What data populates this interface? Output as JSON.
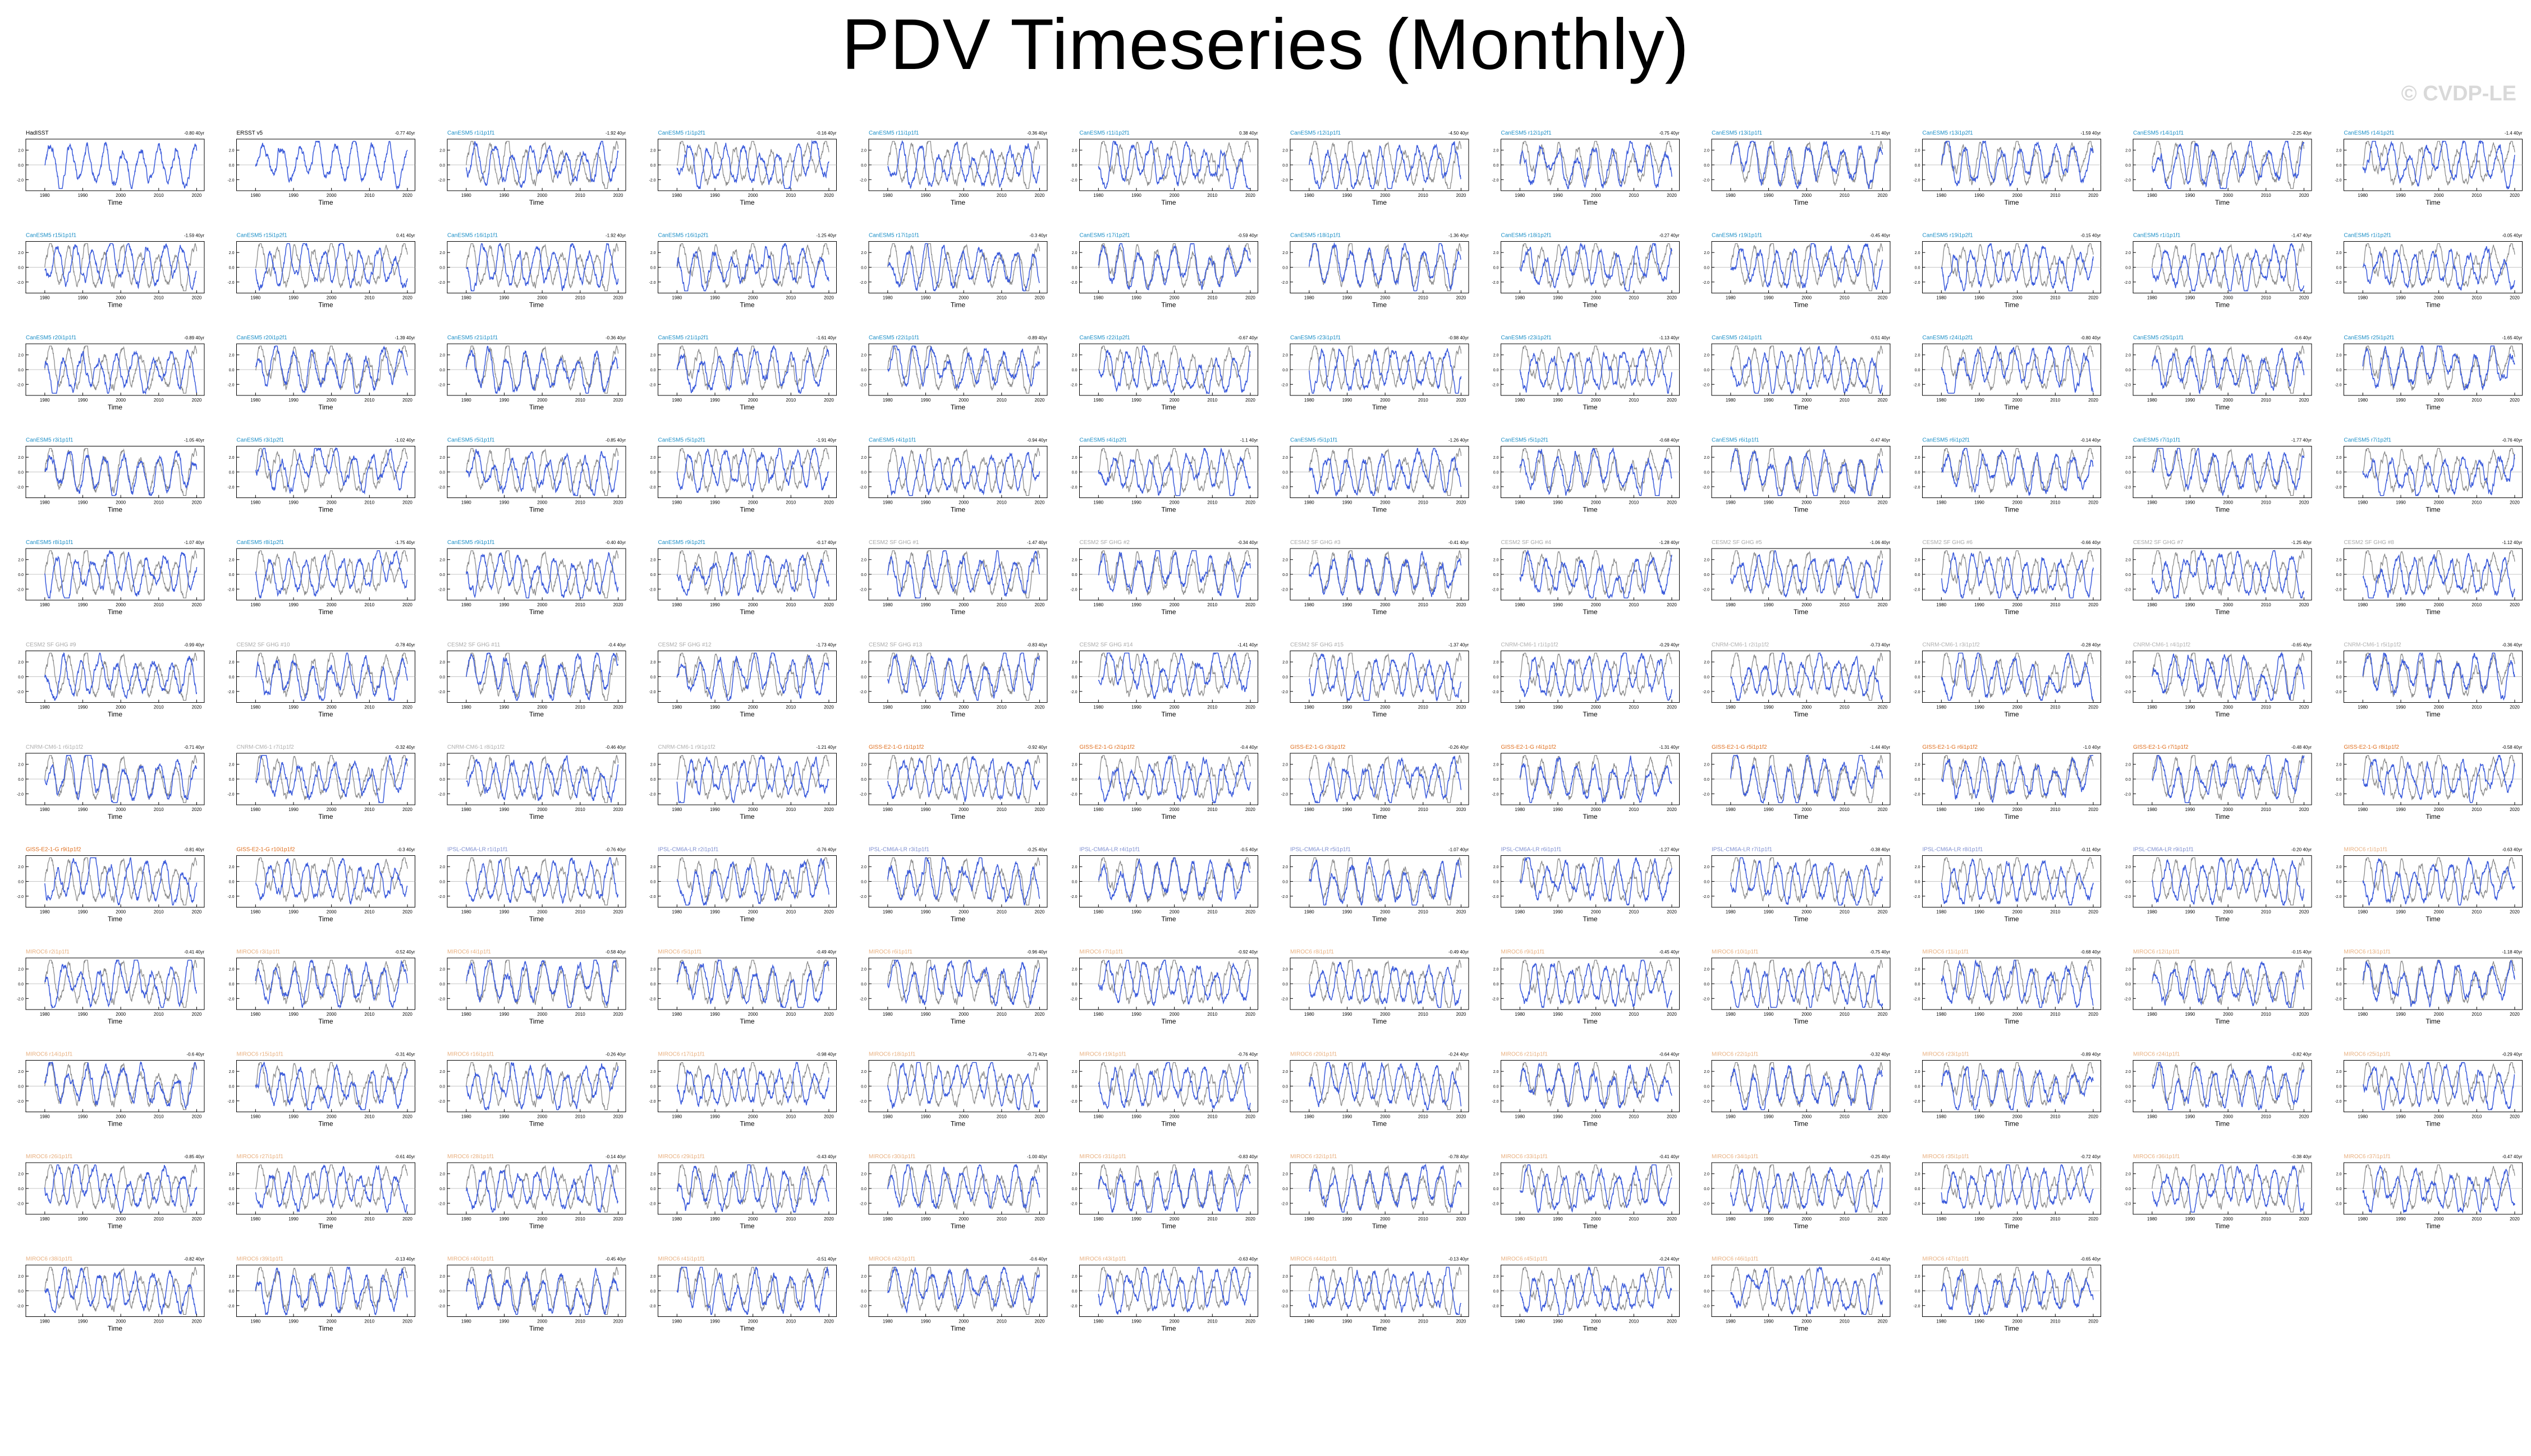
{
  "title": "PDV Timeseries (Monthly)",
  "copyright": "© CVDP-LE",
  "colors": {
    "model_line": "#3b5bdb",
    "obs_line": "#8c8c8c",
    "axis": "#000000",
    "title_obs": "#000000",
    "title_canesm5": "#1c8fc7",
    "title_cesm2": "#a9a9a9",
    "title_cnrm": "#b0b0b0",
    "title_giss": "#e07020",
    "title_ipsl": "#7f8fd0",
    "title_miroc": "#e8b080"
  },
  "chart_data": {
    "type": "line",
    "layout": "small-multiples",
    "xlabel": "Time",
    "x_ticks": [
      "1980",
      "1990",
      "2000",
      "2010",
      "2020"
    ],
    "xlim": [
      1975,
      2022
    ],
    "y_ticks": [
      -3.0,
      -2.0,
      -1.0,
      0.0,
      1.0,
      2.0,
      3.0
    ],
    "series_colors": {
      "member": "#3b5bdb",
      "observations_overlay": "#8c8c8c"
    },
    "panels": [
      {
        "title": "HadISST",
        "group": "obs",
        "trend": "-0.80 40yr"
      },
      {
        "title": "ERSST v5",
        "group": "obs",
        "trend": "-0.77 40yr"
      },
      {
        "title": "CanESM5 r1i1p1f1",
        "group": "canesm5",
        "trend": "-1.92 40yr"
      },
      {
        "title": "CanESM5 r1i1p2f1",
        "group": "canesm5",
        "trend": "-0.16 40yr"
      },
      {
        "title": "CanESM5 r11i1p1f1",
        "group": "canesm5",
        "trend": "-0.36 40yr"
      },
      {
        "title": "CanESM5 r11i1p2f1",
        "group": "canesm5",
        "trend": "0.38 40yr"
      },
      {
        "title": "CanESM5 r12i1p1f1",
        "group": "canesm5",
        "trend": "-4.50 40yr"
      },
      {
        "title": "CanESM5 r12i1p2f1",
        "group": "canesm5",
        "trend": "-0.75 40yr"
      },
      {
        "title": "CanESM5 r13i1p1f1",
        "group": "canesm5",
        "trend": "-1.71 40yr"
      },
      {
        "title": "CanESM5 r13i1p2f1",
        "group": "canesm5",
        "trend": "-1.59 40yr"
      },
      {
        "title": "CanESM5 r14i1p1f1",
        "group": "canesm5",
        "trend": "-2.25 40yr"
      },
      {
        "title": "CanESM5 r14i1p2f1",
        "group": "canesm5",
        "trend": "-1.4 40yr"
      },
      {
        "title": "CanESM5 r15i1p1f1",
        "group": "canesm5",
        "trend": "-1.59 40yr"
      },
      {
        "title": "CanESM5 r15i1p2f1",
        "group": "canesm5",
        "trend": "0.41 40yr"
      },
      {
        "title": "CanESM5 r16i1p1f1",
        "group": "canesm5",
        "trend": "-1.92 40yr"
      },
      {
        "title": "CanESM5 r16i1p2f1",
        "group": "canesm5",
        "trend": "-1.25 40yr"
      },
      {
        "title": "CanESM5 r17i1p1f1",
        "group": "canesm5",
        "trend": "-0.3 40yr"
      },
      {
        "title": "CanESM5 r17i1p2f1",
        "group": "canesm5",
        "trend": "-0.59 40yr"
      },
      {
        "title": "CanESM5 r18i1p1f1",
        "group": "canesm5",
        "trend": "-1.36 40yr"
      },
      {
        "title": "CanESM5 r18i1p2f1",
        "group": "canesm5",
        "trend": "-0.27 40yr"
      },
      {
        "title": "CanESM5 r19i1p1f1",
        "group": "canesm5",
        "trend": "-0.45 40yr"
      },
      {
        "title": "CanESM5 r19i1p2f1",
        "group": "canesm5",
        "trend": "-0.15 40yr"
      },
      {
        "title": "CanESM5 r1i1p1f1",
        "group": "canesm5",
        "trend": "-1.47 40yr"
      },
      {
        "title": "CanESM5 r1i1p2f1",
        "group": "canesm5",
        "trend": "-0.05 40yr"
      },
      {
        "title": "CanESM5 r20i1p1f1",
        "group": "canesm5",
        "trend": "-0.89 40yr"
      },
      {
        "title": "CanESM5 r20i1p2f1",
        "group": "canesm5",
        "trend": "-1.39 40yr"
      },
      {
        "title": "CanESM5 r21i1p1f1",
        "group": "canesm5",
        "trend": "-0.36 40yr"
      },
      {
        "title": "CanESM5 r21i1p2f1",
        "group": "canesm5",
        "trend": "-1.61 40yr"
      },
      {
        "title": "CanESM5 r22i1p1f1",
        "group": "canesm5",
        "trend": "-0.89 40yr"
      },
      {
        "title": "CanESM5 r22i1p2f1",
        "group": "canesm5",
        "trend": "-0.67 40yr"
      },
      {
        "title": "CanESM5 r23i1p1f1",
        "group": "canesm5",
        "trend": "-0.98 40yr"
      },
      {
        "title": "CanESM5 r23i1p2f1",
        "group": "canesm5",
        "trend": "-1.13 40yr"
      },
      {
        "title": "CanESM5 r24i1p1f1",
        "group": "canesm5",
        "trend": "-0.51 40yr"
      },
      {
        "title": "CanESM5 r24i1p2f1",
        "group": "canesm5",
        "trend": "-0.80 40yr"
      },
      {
        "title": "CanESM5 r25i1p1f1",
        "group": "canesm5",
        "trend": "-0.6 40yr"
      },
      {
        "title": "CanESM5 r25i1p2f1",
        "group": "canesm5",
        "trend": "-1.65 40yr"
      },
      {
        "title": "CanESM5 r3i1p1f1",
        "group": "canesm5",
        "trend": "-1.05 40yr"
      },
      {
        "title": "CanESM5 r3i1p2f1",
        "group": "canesm5",
        "trend": "-1.02 40yr"
      },
      {
        "title": "CanESM5 r5i1p1f1",
        "group": "canesm5",
        "trend": "-0.85 40yr"
      },
      {
        "title": "CanESM5 r5i1p2f1",
        "group": "canesm5",
        "trend": "-1.91 40yr"
      },
      {
        "title": "CanESM5 r4i1p1f1",
        "group": "canesm5",
        "trend": "-0.94 40yr"
      },
      {
        "title": "CanESM5 r4i1p2f1",
        "group": "canesm5",
        "trend": "-1.1 40yr"
      },
      {
        "title": "CanESM5 r5i1p1f1",
        "group": "canesm5",
        "trend": "-1.26 40yr"
      },
      {
        "title": "CanESM5 r5i1p2f1",
        "group": "canesm5",
        "trend": "-0.68 40yr"
      },
      {
        "title": "CanESM5 r6i1p1f1",
        "group": "canesm5",
        "trend": "-0.47 40yr"
      },
      {
        "title": "CanESM5 r6i1p2f1",
        "group": "canesm5",
        "trend": "-0.14 40yr"
      },
      {
        "title": "CanESM5 r7i1p1f1",
        "group": "canesm5",
        "trend": "-1.77 40yr"
      },
      {
        "title": "CanESM5 r7i1p2f1",
        "group": "canesm5",
        "trend": "-0.76 40yr"
      },
      {
        "title": "CanESM5 r8i1p1f1",
        "group": "canesm5",
        "trend": "-1.07 40yr"
      },
      {
        "title": "CanESM5 r8i1p2f1",
        "group": "canesm5",
        "trend": "-1.75 40yr"
      },
      {
        "title": "CanESM5 r9i1p1f1",
        "group": "canesm5",
        "trend": "-0.40 40yr"
      },
      {
        "title": "CanESM5 r9i1p2f1",
        "group": "canesm5",
        "trend": "-0.17 40yr"
      },
      {
        "title": "CESM2 SF GHG #1",
        "group": "cesm2",
        "trend": "-1.47 40yr"
      },
      {
        "title": "CESM2 SF GHG #2",
        "group": "cesm2",
        "trend": "-0.34 40yr"
      },
      {
        "title": "CESM2 SF GHG #3",
        "group": "cesm2",
        "trend": "-0.41 40yr"
      },
      {
        "title": "CESM2 SF GHG #4",
        "group": "cesm2",
        "trend": "-1.28 40yr"
      },
      {
        "title": "CESM2 SF GHG #5",
        "group": "cesm2",
        "trend": "-1.06 40yr"
      },
      {
        "title": "CESM2 SF GHG #6",
        "group": "cesm2",
        "trend": "-0.66 40yr"
      },
      {
        "title": "CESM2 SF GHG #7",
        "group": "cesm2",
        "trend": "-1.25 40yr"
      },
      {
        "title": "CESM2 SF GHG #8",
        "group": "cesm2",
        "trend": "-1.12 40yr"
      },
      {
        "title": "CESM2 SF GHG #9",
        "group": "cesm2",
        "trend": "-0.99 40yr"
      },
      {
        "title": "CESM2 SF GHG #10",
        "group": "cesm2",
        "trend": "-0.78 40yr"
      },
      {
        "title": "CESM2 SF GHG #11",
        "group": "cesm2",
        "trend": "-0.4 40yr"
      },
      {
        "title": "CESM2 SF GHG #12",
        "group": "cesm2",
        "trend": "-1.73 40yr"
      },
      {
        "title": "CESM2 SF GHG #13",
        "group": "cesm2",
        "trend": "-0.83 40yr"
      },
      {
        "title": "CESM2 SF GHG #14",
        "group": "cesm2",
        "trend": "-1.41 40yr"
      },
      {
        "title": "CESM2 SF GHG #15",
        "group": "cesm2",
        "trend": "-1.37 40yr"
      },
      {
        "title": "CNRM-CM6-1 r1i1p1f2",
        "group": "cnrm",
        "trend": "-0.29 40yr"
      },
      {
        "title": "CNRM-CM6-1 r2i1p1f2",
        "group": "cnrm",
        "trend": "-0.73 40yr"
      },
      {
        "title": "CNRM-CM6-1 r3i1p1f2",
        "group": "cnrm",
        "trend": "-0.28 40yr"
      },
      {
        "title": "CNRM-CM6-1 r4i1p1f2",
        "group": "cnrm",
        "trend": "-0.65 40yr"
      },
      {
        "title": "CNRM-CM6-1 r5i1p1f2",
        "group": "cnrm",
        "trend": "-0.36 40yr"
      },
      {
        "title": "CNRM-CM6-1 r6i1p1f2",
        "group": "cnrm",
        "trend": "-0.71 40yr"
      },
      {
        "title": "CNRM-CM6-1 r7i1p1f2",
        "group": "cnrm",
        "trend": "-0.32 40yr"
      },
      {
        "title": "CNRM-CM6-1 r8i1p1f2",
        "group": "cnrm",
        "trend": "-0.46 40yr"
      },
      {
        "title": "CNRM-CM6-1 r9i1p1f2",
        "group": "cnrm",
        "trend": "-1.21 40yr"
      },
      {
        "title": "GISS-E2-1-G r1i1p1f2",
        "group": "giss",
        "trend": "-0.92 40yr"
      },
      {
        "title": "GISS-E2-1-G r2i1p1f2",
        "group": "giss",
        "trend": "-0.4 40yr"
      },
      {
        "title": "GISS-E2-1-G r3i1p1f2",
        "group": "giss",
        "trend": "-0.26 40yr"
      },
      {
        "title": "GISS-E2-1-G r4i1p1f2",
        "group": "giss",
        "trend": "-1.31 40yr"
      },
      {
        "title": "GISS-E2-1-G r5i1p1f2",
        "group": "giss",
        "trend": "-1.44 40yr"
      },
      {
        "title": "GISS-E2-1-G r6i1p1f2",
        "group": "giss",
        "trend": "-1.0 40yr"
      },
      {
        "title": "GISS-E2-1-G r7i1p1f2",
        "group": "giss",
        "trend": "-0.48 40yr"
      },
      {
        "title": "GISS-E2-1-G r8i1p1f2",
        "group": "giss",
        "trend": "-0.58 40yr"
      },
      {
        "title": "GISS-E2-1-G r9i1p1f2",
        "group": "giss",
        "trend": "-0.81 40yr"
      },
      {
        "title": "GISS-E2-1-G r10i1p1f2",
        "group": "giss",
        "trend": "-0.3 40yr"
      },
      {
        "title": "IPSL-CM6A-LR r1i1p1f1",
        "group": "ipsl",
        "trend": "-0.76 40yr"
      },
      {
        "title": "IPSL-CM6A-LR r2i1p1f1",
        "group": "ipsl",
        "trend": "-0.76 40yr"
      },
      {
        "title": "IPSL-CM6A-LR r3i1p1f1",
        "group": "ipsl",
        "trend": "-0.25 40yr"
      },
      {
        "title": "IPSL-CM6A-LR r4i1p1f1",
        "group": "ipsl",
        "trend": "-0.5 40yr"
      },
      {
        "title": "IPSL-CM6A-LR r5i1p1f1",
        "group": "ipsl",
        "trend": "-1.07 40yr"
      },
      {
        "title": "IPSL-CM6A-LR r6i1p1f1",
        "group": "ipsl",
        "trend": "-1.27 40yr"
      },
      {
        "title": "IPSL-CM6A-LR r7i1p1f1",
        "group": "ipsl",
        "trend": "-0.38 40yr"
      },
      {
        "title": "IPSL-CM6A-LR r8i1p1f1",
        "group": "ipsl",
        "trend": "-0.11 40yr"
      },
      {
        "title": "IPSL-CM6A-LR r9i1p1f1",
        "group": "ipsl",
        "trend": "-0.20 40yr"
      },
      {
        "title": "MIROC6 r1i1p1f1",
        "group": "miroc",
        "trend": "-0.63 40yr"
      },
      {
        "title": "MIROC6 r2i1p1f1",
        "group": "miroc",
        "trend": "-0.41 40yr"
      },
      {
        "title": "MIROC6 r3i1p1f1",
        "group": "miroc",
        "trend": "-0.52 40yr"
      },
      {
        "title": "MIROC6 r4i1p1f1",
        "group": "miroc",
        "trend": "-0.58 40yr"
      },
      {
        "title": "MIROC6 r5i1p1f1",
        "group": "miroc",
        "trend": "-0.49 40yr"
      },
      {
        "title": "MIROC6 r6i1p1f1",
        "group": "miroc",
        "trend": "-0.96 40yr"
      },
      {
        "title": "MIROC6 r7i1p1f1",
        "group": "miroc",
        "trend": "-0.92 40yr"
      },
      {
        "title": "MIROC6 r8i1p1f1",
        "group": "miroc",
        "trend": "-0.49 40yr"
      },
      {
        "title": "MIROC6 r9i1p1f1",
        "group": "miroc",
        "trend": "-0.45 40yr"
      },
      {
        "title": "MIROC6 r10i1p1f1",
        "group": "miroc",
        "trend": "-0.75 40yr"
      },
      {
        "title": "MIROC6 r11i1p1f1",
        "group": "miroc",
        "trend": "-0.68 40yr"
      },
      {
        "title": "MIROC6 r12i1p1f1",
        "group": "miroc",
        "trend": "-0.15 40yr"
      },
      {
        "title": "MIROC6 r13i1p1f1",
        "group": "miroc",
        "trend": "-1.18 40yr"
      },
      {
        "title": "MIROC6 r14i1p1f1",
        "group": "miroc",
        "trend": "-0.6 40yr"
      },
      {
        "title": "MIROC6 r15i1p1f1",
        "group": "miroc",
        "trend": "-0.31 40yr"
      },
      {
        "title": "MIROC6 r16i1p1f1",
        "group": "miroc",
        "trend": "-0.26 40yr"
      },
      {
        "title": "MIROC6 r17i1p1f1",
        "group": "miroc",
        "trend": "-0.98 40yr"
      },
      {
        "title": "MIROC6 r18i1p1f1",
        "group": "miroc",
        "trend": "-0.71 40yr"
      },
      {
        "title": "MIROC6 r19i1p1f1",
        "group": "miroc",
        "trend": "-0.76 40yr"
      },
      {
        "title": "MIROC6 r20i1p1f1",
        "group": "miroc",
        "trend": "-0.24 40yr"
      },
      {
        "title": "MIROC6 r21i1p1f1",
        "group": "miroc",
        "trend": "-0.64 40yr"
      },
      {
        "title": "MIROC6 r22i1p1f1",
        "group": "miroc",
        "trend": "-0.32 40yr"
      },
      {
        "title": "MIROC6 r23i1p1f1",
        "group": "miroc",
        "trend": "-0.89 40yr"
      },
      {
        "title": "MIROC6 r24i1p1f1",
        "group": "miroc",
        "trend": "-0.82 40yr"
      },
      {
        "title": "MIROC6 r25i1p1f1",
        "group": "miroc",
        "trend": "-0.29 40yr"
      },
      {
        "title": "MIROC6 r26i1p1f1",
        "group": "miroc",
        "trend": "-0.85 40yr"
      },
      {
        "title": "MIROC6 r27i1p1f1",
        "group": "miroc",
        "trend": "-0.61 40yr"
      },
      {
        "title": "MIROC6 r28i1p1f1",
        "group": "miroc",
        "trend": "-0.14 40yr"
      },
      {
        "title": "MIROC6 r29i1p1f1",
        "group": "miroc",
        "trend": "-0.43 40yr"
      },
      {
        "title": "MIROC6 r30i1p1f1",
        "group": "miroc",
        "trend": "-1.00 40yr"
      },
      {
        "title": "MIROC6 r31i1p1f1",
        "group": "miroc",
        "trend": "-0.83 40yr"
      },
      {
        "title": "MIROC6 r32i1p1f1",
        "group": "miroc",
        "trend": "-0.78 40yr"
      },
      {
        "title": "MIROC6 r33i1p1f1",
        "group": "miroc",
        "trend": "-0.41 40yr"
      },
      {
        "title": "MIROC6 r34i1p1f1",
        "group": "miroc",
        "trend": "-0.25 40yr"
      },
      {
        "title": "MIROC6 r35i1p1f1",
        "group": "miroc",
        "trend": "-0.72 40yr"
      },
      {
        "title": "MIROC6 r36i1p1f1",
        "group": "miroc",
        "trend": "-0.38 40yr"
      },
      {
        "title": "MIROC6 r37i1p1f1",
        "group": "miroc",
        "trend": "-0.47 40yr"
      },
      {
        "title": "MIROC6 r38i1p1f1",
        "group": "miroc",
        "trend": "-0.82 40yr"
      },
      {
        "title": "MIROC6 r39i1p1f1",
        "group": "miroc",
        "trend": "-0.13 40yr"
      },
      {
        "title": "MIROC6 r40i1p1f1",
        "group": "miroc",
        "trend": "-0.45 40yr"
      },
      {
        "title": "MIROC6 r41i1p1f1",
        "group": "miroc",
        "trend": "-0.51 40yr"
      },
      {
        "title": "MIROC6 r42i1p1f1",
        "group": "miroc",
        "trend": "-0.6 40yr"
      },
      {
        "title": "MIROC6 r43i1p1f1",
        "group": "miroc",
        "trend": "-0.63 40yr"
      },
      {
        "title": "MIROC6 r44i1p1f1",
        "group": "miroc",
        "trend": "-0.13 40yr"
      },
      {
        "title": "MIROC6 r45i1p1f1",
        "group": "miroc",
        "trend": "-0.24 40yr"
      },
      {
        "title": "MIROC6 r46i1p1f1",
        "group": "miroc",
        "trend": "-0.41 40yr"
      },
      {
        "title": "MIROC6 r47i1p1f1",
        "group": "miroc",
        "trend": "-0.65 40yr"
      }
    ]
  }
}
